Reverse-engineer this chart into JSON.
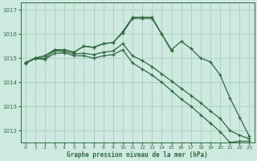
{
  "title": "Graphe pression niveau de la mer (hPa)",
  "bg_color": "#ceeae0",
  "grid_color": "#a8cfc0",
  "line_color": "#2d6b3c",
  "xlim": [
    -0.5,
    23.5
  ],
  "ylim": [
    1011.5,
    1017.3
  ],
  "yticks": [
    1012,
    1013,
    1014,
    1015,
    1016,
    1017
  ],
  "xticks": [
    0,
    1,
    2,
    3,
    4,
    5,
    6,
    7,
    8,
    9,
    10,
    11,
    12,
    13,
    14,
    15,
    16,
    17,
    18,
    19,
    20,
    21,
    22,
    23
  ],
  "series": [
    {
      "x": [
        0,
        1,
        2,
        3,
        4,
        5,
        6,
        7,
        8,
        9,
        10,
        11,
        12,
        13,
        14,
        15,
        16,
        17,
        18,
        19,
        20,
        21,
        22,
        23
      ],
      "y": [
        1014.8,
        1015.0,
        1015.1,
        1015.35,
        1015.35,
        1015.25,
        1015.5,
        1015.45,
        1015.6,
        1015.65,
        1016.1,
        1016.7,
        1016.7,
        1016.7,
        1016.0,
        1015.35,
        1015.7,
        1015.4,
        1015.0,
        1014.85,
        1014.3,
        1013.35,
        1012.55,
        1011.75
      ]
    },
    {
      "x": [
        0,
        1,
        2,
        3,
        4,
        5,
        6,
        7,
        8,
        9,
        10,
        11,
        12,
        13,
        14,
        15
      ],
      "y": [
        1014.8,
        1015.0,
        1015.1,
        1015.35,
        1015.35,
        1015.25,
        1015.5,
        1015.45,
        1015.6,
        1015.65,
        1016.05,
        1016.65,
        1016.65,
        1016.65,
        1016.0,
        1015.3
      ]
    },
    {
      "x": [
        0,
        1,
        2,
        3,
        4,
        5,
        6,
        7,
        8,
        9,
        10,
        11,
        12,
        13,
        14,
        15,
        16,
        17,
        18,
        19,
        20,
        21,
        22,
        23
      ],
      "y": [
        1014.82,
        1015.0,
        1015.0,
        1015.3,
        1015.28,
        1015.18,
        1015.2,
        1015.15,
        1015.25,
        1015.3,
        1015.6,
        1015.1,
        1014.9,
        1014.65,
        1014.35,
        1014.05,
        1013.75,
        1013.45,
        1013.15,
        1012.8,
        1012.5,
        1012.0,
        1011.8,
        1011.65
      ]
    },
    {
      "x": [
        0,
        1,
        2,
        3,
        4,
        5,
        6,
        7,
        8,
        9,
        10,
        11,
        12,
        13,
        14,
        15,
        16,
        17,
        18,
        19,
        20,
        21,
        22,
        23
      ],
      "y": [
        1014.78,
        1014.98,
        1014.95,
        1015.2,
        1015.22,
        1015.1,
        1015.1,
        1015.0,
        1015.1,
        1015.15,
        1015.35,
        1014.8,
        1014.55,
        1014.3,
        1014.0,
        1013.65,
        1013.3,
        1013.0,
        1012.65,
        1012.3,
        1011.95,
        1011.5,
        1011.55,
        1011.55
      ]
    }
  ]
}
